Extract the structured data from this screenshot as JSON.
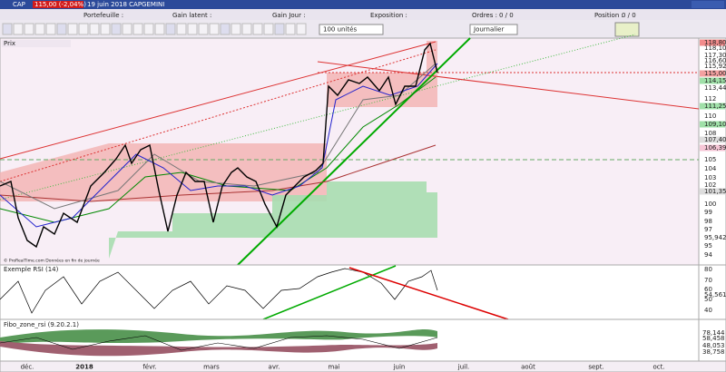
{
  "header": {
    "symbol": "CAP",
    "quote": "115,00 (-2,04%)",
    "date_name": "19 juin 2018 CAPGEMINI"
  },
  "info_bar": {
    "portfolio": "Portefeuille :",
    "latent": "Gain latent :",
    "day": "Gain Jour :",
    "exposure": "Exposition :",
    "orders": {
      "label": "Ordres :",
      "value": "0 / 0"
    },
    "position": {
      "label": "Position :",
      "value": "0 / 0"
    }
  },
  "toolbar": {
    "quantity": "100 unités",
    "period": "Journalier"
  },
  "price_panel": {
    "label": "Prix",
    "credit": "© ProRealTime.com Données en fin de journée",
    "axis_labels": [
      "118,80",
      "118,10",
      "117,30",
      "116,60",
      "115,92",
      "115,00",
      "114,15",
      "113,44",
      "112",
      "111,25",
      "110",
      "109,10",
      "108",
      "107,40",
      "106,39",
      "105",
      "104",
      "103",
      "102",
      "101,35",
      "100",
      "99",
      "98",
      "97",
      "95,942",
      "95",
      "94"
    ]
  },
  "rsi_panel": {
    "label": "Exemple RSI (14)",
    "axis_labels": [
      "80",
      "70",
      "60",
      "54,561",
      "50",
      "40"
    ]
  },
  "fibo_panel": {
    "label": "Fibo_zone_rsi (9.20.2.1)",
    "axis_labels": [
      "78,144",
      "58,458",
      "48,053",
      "38,758"
    ]
  },
  "x_axis": [
    "déc.",
    "2018",
    "févr.",
    "mars",
    "avr.",
    "mai",
    "juin",
    "juil.",
    "août",
    "sept.",
    "oct."
  ]
}
